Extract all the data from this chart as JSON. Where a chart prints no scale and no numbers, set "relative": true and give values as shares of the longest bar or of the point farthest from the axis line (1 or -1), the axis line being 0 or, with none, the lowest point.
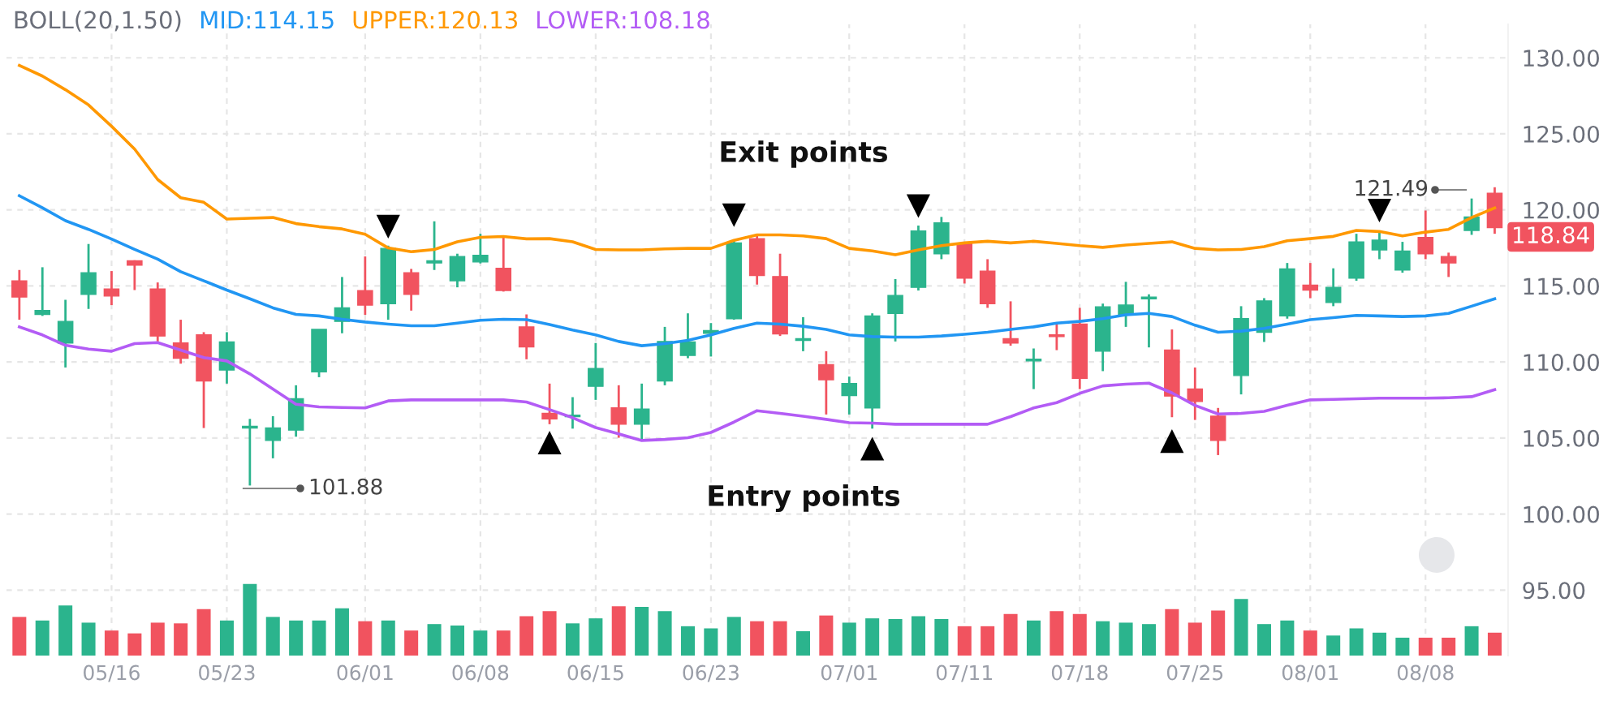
{
  "chart_data": [
    {
      "type": "candlestick",
      "title": "BOLL(20,1.50)",
      "categories": [
        null,
        null,
        null,
        null,
        "05/16",
        null,
        null,
        null,
        null,
        "05/23",
        null,
        null,
        null,
        null,
        null,
        "06/01",
        null,
        null,
        null,
        null,
        "06/08",
        null,
        null,
        null,
        null,
        "06/15",
        null,
        null,
        null,
        null,
        "06/23",
        null,
        null,
        null,
        null,
        null,
        "07/01",
        null,
        null,
        null,
        null,
        "07/11",
        null,
        null,
        null,
        null,
        "07/18",
        null,
        null,
        null,
        null,
        "07/25",
        null,
        null,
        null,
        null,
        "08/01",
        null,
        null,
        null,
        null,
        "08/08",
        null,
        null,
        null
      ],
      "ohlc": [
        [
          115.34,
          116.05,
          112.78,
          114.27
        ],
        [
          113.13,
          116.23,
          113.03,
          113.38
        ],
        [
          111.25,
          114.09,
          109.64,
          112.67
        ],
        [
          114.45,
          117.76,
          113.49,
          115.87
        ],
        [
          114.8,
          115.98,
          113.74,
          114.34
        ],
        [
          116.66,
          116.69,
          114.73,
          116.37
        ],
        [
          114.8,
          115.23,
          111.35,
          111.71
        ],
        [
          111.25,
          112.78,
          109.89,
          110.25
        ],
        [
          111.78,
          111.96,
          105.66,
          108.75
        ],
        [
          109.47,
          111.96,
          108.58,
          111.32
        ],
        [
          105.66,
          106.26,
          101.88,
          105.77
        ],
        [
          104.84,
          106.44,
          103.67,
          105.66
        ],
        [
          105.52,
          108.47,
          105.09,
          107.58
        ],
        [
          109.36,
          112.14,
          109.0,
          112.14
        ],
        [
          112.67,
          115.59,
          111.89,
          113.56
        ],
        [
          114.7,
          116.94,
          113.1,
          113.74
        ],
        [
          113.84,
          117.65,
          112.78,
          117.47
        ],
        [
          115.87,
          116.12,
          113.38,
          114.45
        ],
        [
          116.51,
          119.25,
          116.05,
          116.66
        ],
        [
          115.34,
          117.12,
          114.91,
          116.94
        ],
        [
          116.58,
          118.43,
          116.48,
          117.01
        ],
        [
          116.16,
          118.19,
          114.63,
          114.7
        ],
        [
          112.31,
          113.13,
          110.18,
          111.0
        ],
        [
          106.62,
          108.58,
          105.91,
          106.26
        ],
        [
          106.41,
          107.69,
          105.62,
          106.51
        ],
        [
          108.4,
          111.25,
          107.51,
          109.57
        ],
        [
          106.98,
          108.47,
          105.02,
          105.91
        ],
        [
          105.91,
          108.58,
          104.91,
          106.9
        ],
        [
          108.75,
          112.31,
          108.47,
          111.35
        ],
        [
          110.43,
          113.2,
          110.25,
          111.32
        ],
        [
          111.89,
          112.56,
          110.36,
          112.06
        ],
        [
          112.85,
          118.01,
          112.78,
          117.83
        ],
        [
          118.11,
          118.43,
          115.09,
          115.69
        ],
        [
          115.62,
          117.12,
          111.71,
          111.85
        ],
        [
          111.42,
          112.95,
          110.71,
          111.53
        ],
        [
          109.82,
          110.71,
          106.55,
          108.83
        ],
        [
          107.79,
          109.04,
          106.55,
          108.58
        ],
        [
          106.98,
          113.2,
          105.62,
          113.03
        ],
        [
          113.2,
          115.45,
          111.35,
          114.38
        ],
        [
          114.91,
          118.97,
          114.7,
          118.61
        ],
        [
          117.12,
          119.54,
          116.76,
          119.15
        ],
        [
          117.76,
          117.83,
          115.16,
          115.52
        ],
        [
          115.98,
          116.76,
          113.56,
          113.84
        ],
        [
          111.53,
          113.99,
          111.07,
          111.25
        ],
        [
          110.07,
          110.89,
          108.22,
          110.18
        ],
        [
          111.78,
          112.49,
          110.78,
          111.67
        ],
        [
          112.49,
          113.56,
          108.22,
          108.93
        ],
        [
          110.71,
          113.84,
          109.4,
          113.63
        ],
        [
          113.13,
          115.27,
          112.31,
          113.74
        ],
        [
          114.16,
          114.45,
          110.96,
          114.27
        ],
        [
          110.78,
          112.14,
          106.37,
          107.76
        ],
        [
          108.22,
          109.64,
          106.19,
          107.4
        ],
        [
          106.44,
          106.98,
          103.88,
          104.84
        ],
        [
          109.11,
          113.67,
          107.87,
          112.85
        ],
        [
          111.96,
          114.2,
          111.32,
          114.02
        ],
        [
          113.03,
          116.51,
          112.85,
          116.12
        ],
        [
          115.05,
          116.51,
          114.2,
          114.73
        ],
        [
          113.91,
          116.16,
          113.67,
          114.91
        ],
        [
          115.52,
          118.43,
          115.34,
          117.9
        ],
        [
          117.37,
          118.54,
          116.76,
          118.01
        ],
        [
          116.05,
          117.9,
          115.87,
          117.3
        ],
        [
          118.19,
          119.96,
          116.76,
          117.12
        ],
        [
          116.94,
          117.19,
          115.59,
          116.51
        ],
        [
          118.65,
          120.75,
          118.36,
          119.54
        ],
        [
          121.1,
          121.49,
          118.43,
          118.84
        ]
      ],
      "colors": [
        "#f1535f",
        "#2bb48d",
        "#2bb48d",
        "#2bb48d",
        "#f1535f",
        "#f1535f",
        "#f1535f",
        "#f1535f",
        "#f1535f",
        "#2bb48d",
        "#2bb48d",
        "#2bb48d",
        "#2bb48d",
        "#2bb48d",
        "#2bb48d",
        "#f1535f",
        "#2bb48d",
        "#f1535f",
        "#2bb48d",
        "#2bb48d",
        "#2bb48d",
        "#f1535f",
        "#f1535f",
        "#f1535f",
        "#2bb48d",
        "#2bb48d",
        "#f1535f",
        "#2bb48d",
        "#2bb48d",
        "#2bb48d",
        "#2bb48d",
        "#2bb48d",
        "#f1535f",
        "#f1535f",
        "#2bb48d",
        "#f1535f",
        "#2bb48d",
        "#2bb48d",
        "#2bb48d",
        "#2bb48d",
        "#2bb48d",
        "#f1535f",
        "#f1535f",
        "#f1535f",
        "#2bb48d",
        "#f1535f",
        "#f1535f",
        "#2bb48d",
        "#2bb48d",
        "#2bb48d",
        "#f1535f",
        "#f1535f",
        "#f1535f",
        "#2bb48d",
        "#2bb48d",
        "#2bb48d",
        "#f1535f",
        "#2bb48d",
        "#2bb48d",
        "#2bb48d",
        "#2bb48d",
        "#f1535f",
        "#f1535f",
        "#2bb48d",
        "#f1535f"
      ],
      "series": [
        {
          "name": "MID:114.15",
          "type": "line",
          "color": "#2196f3",
          "values": [
            120.93,
            120.14,
            119.29,
            118.72,
            118.08,
            117.4,
            116.76,
            115.94,
            115.34,
            114.73,
            114.16,
            113.56,
            113.13,
            113.03,
            112.81,
            112.63,
            112.49,
            112.38,
            112.38,
            112.56,
            112.74,
            112.81,
            112.78,
            112.46,
            112.1,
            111.78,
            111.35,
            111.07,
            111.21,
            111.42,
            111.78,
            112.21,
            112.56,
            112.49,
            112.35,
            112.14,
            111.78,
            111.67,
            111.64,
            111.64,
            111.71,
            111.82,
            111.96,
            112.14,
            112.31,
            112.56,
            112.67,
            112.85,
            113.1,
            113.2,
            112.99,
            112.42,
            111.96,
            112.03,
            112.21,
            112.49,
            112.78,
            112.92,
            113.06,
            113.03,
            112.99,
            113.03,
            113.2,
            113.67,
            114.15
          ]
        },
        {
          "name": "UPPER:120.13",
          "type": "line",
          "color": "#ff9800",
          "values": [
            129.5,
            128.8,
            127.9,
            126.9,
            125.5,
            124.0,
            122.0,
            120.8,
            120.5,
            119.4,
            119.45,
            119.5,
            119.1,
            118.9,
            118.75,
            118.4,
            117.5,
            117.25,
            117.4,
            117.9,
            118.2,
            118.25,
            118.1,
            118.11,
            117.9,
            117.4,
            117.37,
            117.37,
            117.44,
            117.47,
            117.47,
            118.0,
            118.36,
            118.36,
            118.29,
            118.11,
            117.47,
            117.3,
            117.05,
            117.37,
            117.65,
            117.83,
            117.94,
            117.83,
            117.94,
            117.8,
            117.65,
            117.54,
            117.69,
            117.8,
            117.9,
            117.47,
            117.37,
            117.4,
            117.58,
            117.97,
            118.11,
            118.26,
            118.65,
            118.58,
            118.29,
            118.54,
            118.72,
            119.5,
            120.13
          ]
        },
        {
          "name": "LOWER:108.18",
          "type": "line",
          "color": "#b35cf5",
          "values": [
            112.31,
            111.78,
            111.1,
            110.85,
            110.71,
            111.21,
            111.28,
            110.78,
            110.29,
            110.07,
            109.22,
            108.22,
            107.22,
            107.05,
            107.01,
            106.98,
            107.44,
            107.51,
            107.51,
            107.51,
            107.51,
            107.51,
            107.37,
            106.87,
            106.34,
            105.69,
            105.27,
            104.84,
            104.91,
            105.02,
            105.37,
            106.05,
            106.8,
            106.62,
            106.44,
            106.23,
            106.01,
            105.98,
            105.91,
            105.91,
            105.91,
            105.91,
            105.91,
            106.41,
            106.98,
            107.33,
            107.94,
            108.43,
            108.54,
            108.61,
            107.97,
            107.15,
            106.58,
            106.62,
            106.76,
            107.15,
            107.51,
            107.54,
            107.58,
            107.62,
            107.62,
            107.62,
            107.65,
            107.72,
            108.18
          ]
        },
        {
          "type": "scatter",
          "marker": "triangle_down",
          "color": "#000000",
          "values": [
            null,
            null,
            null,
            null,
            null,
            null,
            null,
            null,
            null,
            null,
            null,
            null,
            null,
            null,
            null,
            null,
            118.9,
            null,
            null,
            null,
            null,
            null,
            null,
            null,
            null,
            null,
            null,
            null,
            null,
            null,
            null,
            119.65,
            null,
            null,
            null,
            null,
            null,
            null,
            null,
            120.25,
            null,
            null,
            null,
            null,
            null,
            null,
            null,
            null,
            null,
            null,
            null,
            null,
            null,
            null,
            null,
            null,
            null,
            null,
            null,
            119.96,
            null,
            null,
            null,
            null,
            null
          ]
        },
        {
          "type": "scatter",
          "marker": "triangle",
          "color": "#000000",
          "values": [
            null,
            null,
            null,
            null,
            null,
            null,
            null,
            null,
            null,
            null,
            null,
            null,
            null,
            null,
            null,
            null,
            null,
            null,
            null,
            null,
            null,
            null,
            null,
            104.7,
            null,
            null,
            null,
            null,
            null,
            null,
            null,
            null,
            null,
            null,
            null,
            null,
            null,
            104.3,
            null,
            null,
            null,
            null,
            null,
            null,
            null,
            null,
            null,
            null,
            null,
            null,
            104.8,
            null,
            null,
            null,
            null,
            null,
            null,
            null,
            null,
            null,
            null,
            null,
            null,
            null,
            null
          ]
        }
      ],
      "ylim": [
        90.7,
        132.2
      ],
      "yticks": [
        {
          "value": 95,
          "label": "95.00"
        },
        {
          "value": 100,
          "label": "100.00"
        },
        {
          "value": 105,
          "label": "105.00"
        },
        {
          "value": 110,
          "label": "110.00"
        },
        {
          "value": 115,
          "label": "115.00"
        },
        {
          "value": 120,
          "label": "120.00"
        },
        {
          "value": 125,
          "label": "125.00"
        },
        {
          "value": 130,
          "label": "130.00"
        }
      ],
      "annotations": [
        "Exit points",
        "Entry points",
        "101.88",
        "121.49",
        "118.84"
      ],
      "legend": "top left",
      "grid": true
    },
    {
      "type": "bar",
      "relative": true,
      "categories": [
        null,
        null,
        null,
        null,
        null,
        null,
        null,
        null,
        null,
        null,
        null,
        null,
        null,
        null,
        null,
        null,
        null,
        null,
        null,
        null,
        null,
        null,
        null,
        null,
        null,
        null,
        null,
        null,
        null,
        null,
        null,
        null,
        null,
        null,
        null,
        null,
        null,
        null,
        null,
        null,
        null,
        null,
        null,
        null,
        null,
        null,
        null,
        null,
        null,
        null,
        null,
        null,
        null,
        null,
        null,
        null,
        null,
        null,
        null,
        null,
        null,
        null,
        null,
        null,
        null
      ],
      "values": [
        0.54,
        0.49,
        0.7,
        0.46,
        0.35,
        0.31,
        0.46,
        0.45,
        0.65,
        0.49,
        1,
        0.54,
        0.49,
        0.49,
        0.66,
        0.48,
        0.49,
        0.35,
        0.44,
        0.42,
        0.35,
        0.35,
        0.55,
        0.62,
        0.45,
        0.52,
        0.69,
        0.68,
        0.62,
        0.41,
        0.38,
        0.54,
        0.48,
        0.48,
        0.34,
        0.56,
        0.46,
        0.52,
        0.51,
        0.55,
        0.51,
        0.41,
        0.41,
        0.58,
        0.49,
        0.62,
        0.58,
        0.48,
        0.46,
        0.44,
        0.65,
        0.46,
        0.63,
        0.79,
        0.44,
        0.49,
        0.35,
        0.28,
        0.38,
        0.32,
        0.25,
        0.25,
        0.25,
        0.41,
        0.32
      ],
      "colors": [
        "#f1535f",
        "#2bb48d",
        "#2bb48d",
        "#2bb48d",
        "#f1535f",
        "#f1535f",
        "#f1535f",
        "#f1535f",
        "#f1535f",
        "#2bb48d",
        "#2bb48d",
        "#2bb48d",
        "#2bb48d",
        "#2bb48d",
        "#2bb48d",
        "#f1535f",
        "#2bb48d",
        "#f1535f",
        "#2bb48d",
        "#2bb48d",
        "#2bb48d",
        "#f1535f",
        "#f1535f",
        "#f1535f",
        "#2bb48d",
        "#2bb48d",
        "#f1535f",
        "#2bb48d",
        "#2bb48d",
        "#2bb48d",
        "#2bb48d",
        "#2bb48d",
        "#f1535f",
        "#f1535f",
        "#2bb48d",
        "#f1535f",
        "#2bb48d",
        "#2bb48d",
        "#2bb48d",
        "#2bb48d",
        "#2bb48d",
        "#f1535f",
        "#f1535f",
        "#f1535f",
        "#2bb48d",
        "#f1535f",
        "#f1535f",
        "#2bb48d",
        "#2bb48d",
        "#2bb48d",
        "#f1535f",
        "#f1535f",
        "#f1535f",
        "#2bb48d",
        "#2bb48d",
        "#2bb48d",
        "#f1535f",
        "#2bb48d",
        "#2bb48d",
        "#2bb48d",
        "#2bb48d",
        "#f1535f",
        "#f1535f",
        "#2bb48d",
        "#f1535f"
      ]
    }
  ]
}
